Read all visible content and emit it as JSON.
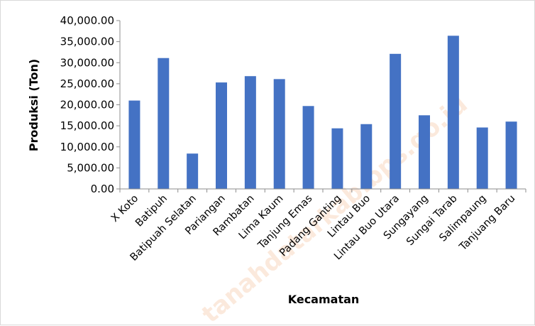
{
  "chart_data": {
    "type": "bar",
    "title": "",
    "xlabel": "Kecamatan",
    "ylabel": "Produksi (Ton)",
    "ylim": [
      0,
      40000
    ],
    "yticks": [
      0,
      5000,
      10000,
      15000,
      20000,
      25000,
      30000,
      35000,
      40000
    ],
    "ytick_labels": [
      "0.00",
      "5,000.00",
      "10,000.00",
      "15,000.00",
      "20,000.00",
      "25,000.00",
      "30,000.00",
      "35,000.00",
      "40,000.00"
    ],
    "grid": false,
    "legend": "none",
    "categories": [
      "X Koto",
      "Batipuh",
      "Batipuah Selatan",
      "Pariangan",
      "Rambatan",
      "Lima Kaum",
      "Tanjung Emas",
      "Padang Ganting",
      "Lintau Buo",
      "Lintau Buo Utara",
      "Sungayang",
      "Sungai Tarab",
      "Salimpaung",
      "Tanjuang Baru"
    ],
    "values": [
      21000,
      31100,
      8400,
      25300,
      26800,
      26100,
      19700,
      14400,
      15400,
      32100,
      17500,
      36400,
      14600,
      16000
    ],
    "bar_color": "#4472c4",
    "watermark": "tanahdatarkab.bps.go.id"
  }
}
